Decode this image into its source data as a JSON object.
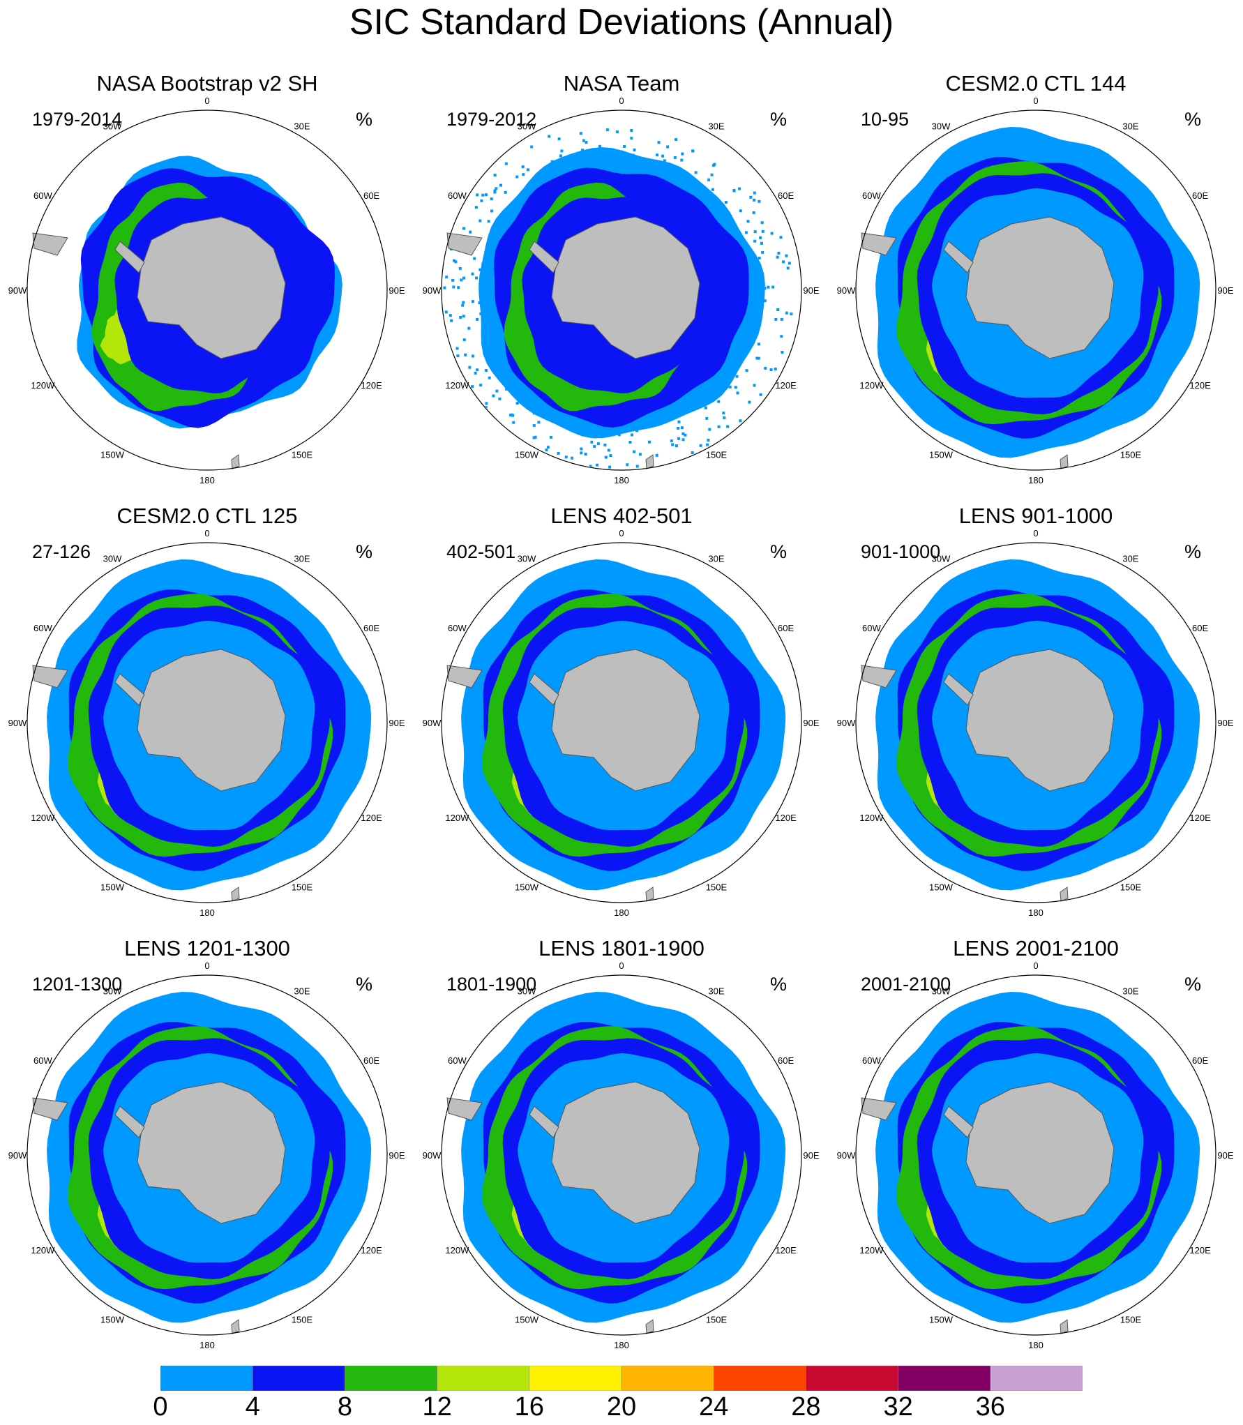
{
  "title": "SIC Standard Deviations (Annual)",
  "units": "%",
  "longitude_labels": [
    "0",
    "30E",
    "60E",
    "90E",
    "120E",
    "150E",
    "180",
    "150W",
    "120W",
    "90W",
    "60W",
    "30W"
  ],
  "colors": {
    "land": "#bebebe",
    "ocean": "#ffffff",
    "circle": "#000000"
  },
  "panels": [
    {
      "title": "NASA Bootstrap v2 SH",
      "period": "1979-2014",
      "units": "%",
      "style": "obs1"
    },
    {
      "title": "NASA Team",
      "period": "1979-2012",
      "units": "%",
      "style": "obs2"
    },
    {
      "title": "CESM2.0 CTL 144",
      "period": "10-95",
      "units": "%",
      "style": "model"
    },
    {
      "title": "CESM2.0 CTL 125",
      "period": "27-126",
      "units": "%",
      "style": "model"
    },
    {
      "title": "LENS 402-501",
      "period": "402-501",
      "units": "%",
      "style": "model"
    },
    {
      "title": "LENS 901-1000",
      "period": "901-1000",
      "units": "%",
      "style": "model"
    },
    {
      "title": "LENS 1201-1300",
      "period": "1201-1300",
      "units": "%",
      "style": "model"
    },
    {
      "title": "LENS 1801-1900",
      "period": "1801-1900",
      "units": "%",
      "style": "model"
    },
    {
      "title": "LENS 2001-2100",
      "period": "2001-2100",
      "units": "%",
      "style": "model"
    }
  ],
  "colorbar": {
    "levels": [
      "0",
      "4",
      "8",
      "12",
      "16",
      "20",
      "24",
      "28",
      "32",
      "36"
    ],
    "colors": [
      "#0099ff",
      "#0a14f5",
      "#22b80c",
      "#b4e60a",
      "#fff000",
      "#ffb400",
      "#ff4600",
      "#c80a32",
      "#820064",
      "#c8a0d2"
    ]
  }
}
